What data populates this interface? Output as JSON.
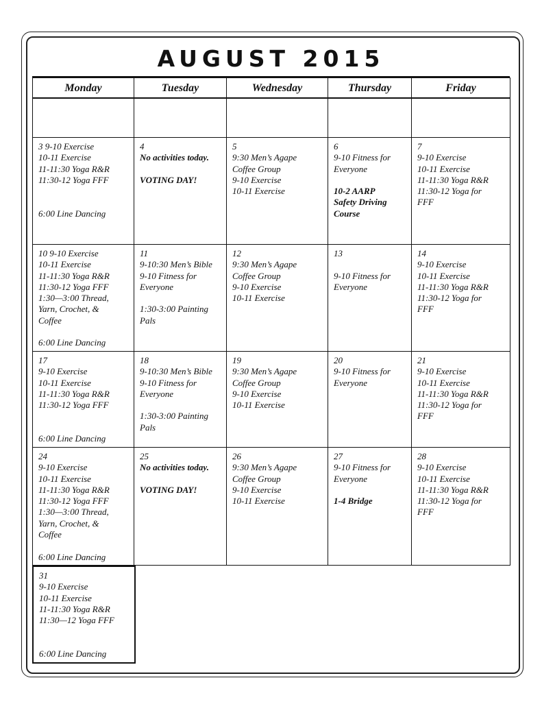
{
  "title": "AUGUST 2015",
  "days": [
    "Monday",
    "Tuesday",
    "Wednesday",
    "Thursday",
    "Friday"
  ],
  "weeks": [
    [
      {
        "lines": []
      },
      {
        "lines": []
      },
      {
        "lines": []
      },
      {
        "lines": []
      },
      {
        "lines": []
      }
    ],
    [
      {
        "lines": [
          {
            "text": "3   9-10 Exercise"
          },
          {
            "text": "10-11 Exercise"
          },
          {
            "text": "11-11:30 Yoga R&R"
          },
          {
            "text": "11:30-12 Yoga FFF"
          },
          {
            "text": ""
          },
          {
            "text": ""
          },
          {
            "text": "6:00 Line Dancing"
          }
        ]
      },
      {
        "lines": [
          {
            "text": "4"
          },
          {
            "text": "No activities today.",
            "bold": true
          },
          {
            "text": ""
          },
          {
            "text": "VOTING DAY!",
            "bold": true
          }
        ]
      },
      {
        "lines": [
          {
            "text": "5"
          },
          {
            "text": "9:30 Men’s Agape"
          },
          {
            "text": "Coffee Group"
          },
          {
            "text": "9-10 Exercise"
          },
          {
            "text": "10-11 Exercise"
          }
        ]
      },
      {
        "lines": [
          {
            "text": "6"
          },
          {
            "text": "9-10 Fitness for"
          },
          {
            "text": "Everyone"
          },
          {
            "text": ""
          },
          {
            "text": "10-2 AARP",
            "bold": true
          },
          {
            "text": "Safety Driving",
            "bold": true
          },
          {
            "text": "Course",
            "bold": true
          }
        ]
      },
      {
        "lines": [
          {
            "text": "7"
          },
          {
            "text": "9-10 Exercise"
          },
          {
            "text": "10-11 Exercise"
          },
          {
            "text": "11-11:30 Yoga R&R"
          },
          {
            "text": "11:30-12 Yoga for"
          },
          {
            "text": "FFF"
          }
        ]
      }
    ],
    [
      {
        "lines": [
          {
            "text": "10  9-10 Exercise"
          },
          {
            "text": "10-11 Exercise"
          },
          {
            "text": "11-11:30 Yoga R&R"
          },
          {
            "text": "11:30-12 Yoga FFF"
          },
          {
            "text": "1:30—3:00 Thread,"
          },
          {
            "text": "Yarn, Crochet, &"
          },
          {
            "text": "Coffee"
          },
          {
            "text": ""
          },
          {
            "text": "6:00 Line Dancing"
          }
        ]
      },
      {
        "lines": [
          {
            "text": "11"
          },
          {
            "text": "9-10:30 Men’s Bible"
          },
          {
            "text": "9-10 Fitness for"
          },
          {
            "text": "Everyone"
          },
          {
            "text": ""
          },
          {
            "text": "1:30-3:00 Painting"
          },
          {
            "text": "Pals"
          }
        ]
      },
      {
        "lines": [
          {
            "text": "12"
          },
          {
            "text": "9:30 Men’s Agape"
          },
          {
            "text": "Coffee Group"
          },
          {
            "text": "9-10 Exercise"
          },
          {
            "text": "10-11 Exercise"
          }
        ]
      },
      {
        "lines": [
          {
            "text": "13"
          },
          {
            "text": ""
          },
          {
            "text": "9-10 Fitness for"
          },
          {
            "text": "Everyone"
          }
        ]
      },
      {
        "lines": [
          {
            "text": "14"
          },
          {
            "text": "9-10 Exercise"
          },
          {
            "text": "10-11 Exercise"
          },
          {
            "text": "11-11:30 Yoga R&R"
          },
          {
            "text": "11:30-12 Yoga for"
          },
          {
            "text": "FFF"
          }
        ]
      }
    ],
    [
      {
        "lines": [
          {
            "text": "17"
          },
          {
            "text": "9-10 Exercise"
          },
          {
            "text": "10-11 Exercise"
          },
          {
            "text": "11-11:30 Yoga R&R"
          },
          {
            "text": "11:30-12 Yoga FFF"
          },
          {
            "text": ""
          },
          {
            "text": ""
          },
          {
            "text": "6:00 Line Dancing"
          }
        ]
      },
      {
        "lines": [
          {
            "text": "18"
          },
          {
            "text": "9-10:30 Men’s Bible"
          },
          {
            "text": "9-10 Fitness for"
          },
          {
            "text": "Everyone"
          },
          {
            "text": ""
          },
          {
            "text": "1:30-3:00 Painting"
          },
          {
            "text": "Pals"
          }
        ]
      },
      {
        "lines": [
          {
            "text": "19"
          },
          {
            "text": "9:30 Men’s Agape"
          },
          {
            "text": "Coffee Group"
          },
          {
            "text": "9-10 Exercise"
          },
          {
            "text": "10-11 Exercise"
          }
        ]
      },
      {
        "lines": [
          {
            "text": "20"
          },
          {
            "text": "9-10 Fitness for"
          },
          {
            "text": "Everyone"
          }
        ]
      },
      {
        "lines": [
          {
            "text": "21"
          },
          {
            "text": "9-10 Exercise"
          },
          {
            "text": "10-11 Exercise"
          },
          {
            "text": "11-11:30 Yoga R&R"
          },
          {
            "text": "11:30-12 Yoga for"
          },
          {
            "text": "FFF"
          }
        ]
      }
    ],
    [
      {
        "lines": [
          {
            "text": "24"
          },
          {
            "text": "9-10 Exercise"
          },
          {
            "text": "10-11 Exercise"
          },
          {
            "text": "11-11:30 Yoga R&R"
          },
          {
            "text": "11:30-12 Yoga FFF"
          },
          {
            "text": "1:30—3:00 Thread,"
          },
          {
            "text": "Yarn, Crochet, &"
          },
          {
            "text": "Coffee"
          },
          {
            "text": ""
          },
          {
            "text": "6:00 Line Dancing"
          }
        ]
      },
      {
        "lines": [
          {
            "text": "25"
          },
          {
            "text": "No activities today.",
            "bold": true
          },
          {
            "text": ""
          },
          {
            "text": "VOTING DAY!",
            "bold": true
          }
        ]
      },
      {
        "lines": [
          {
            "text": "26"
          },
          {
            "text": "9:30 Men’s Agape"
          },
          {
            "text": "Coffee Group"
          },
          {
            "text": "9-10 Exercise"
          },
          {
            "text": "10-11 Exercise"
          }
        ]
      },
      {
        "lines": [
          {
            "text": "27"
          },
          {
            "text": "9-10 Fitness for"
          },
          {
            "text": "Everyone"
          },
          {
            "text": ""
          },
          {
            "text": "1-4 Bridge",
            "bold": true
          }
        ]
      },
      {
        "lines": [
          {
            "text": "28"
          },
          {
            "text": "9-10 Exercise"
          },
          {
            "text": "10-11 Exercise"
          },
          {
            "text": "11-11:30 Yoga R&R"
          },
          {
            "text": "11:30-12 Yoga for"
          },
          {
            "text": "FFF"
          }
        ]
      }
    ],
    [
      {
        "lines": [
          {
            "text": " 31"
          },
          {
            "text": "9-10 Exercise"
          },
          {
            "text": "10-11 Exercise"
          },
          {
            "text": "11-11:30 Yoga R&R"
          },
          {
            "text": "11:30—12 Yoga FFF"
          },
          {
            "text": ""
          },
          {
            "text": ""
          },
          {
            "text": "6:00 Line Dancing"
          }
        ]
      }
    ]
  ]
}
